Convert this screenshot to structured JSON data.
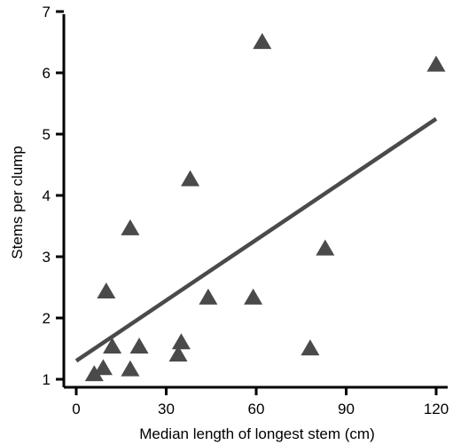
{
  "chart_data": {
    "type": "scatter",
    "title": "",
    "xlabel": "Median length of longest stem (cm)",
    "ylabel": "Stems per clump",
    "xlim": [
      -1,
      122
    ],
    "ylim": [
      0.9,
      7
    ],
    "x_ticks": [
      0,
      30,
      60,
      90,
      120
    ],
    "x_tick_labels": [
      "0",
      "30",
      "60",
      "90",
      "120"
    ],
    "y_ticks": [
      1,
      2,
      3,
      4,
      5,
      6,
      7
    ],
    "y_tick_labels": [
      "1",
      "2",
      "3",
      "4",
      "5",
      "6",
      "7"
    ],
    "grid": false,
    "legend": "none",
    "marker": "triangle",
    "marker_color": "#4a4a4a",
    "line_color": "#4a4a4a",
    "axis_color": "#000000",
    "series": [
      {
        "points": [
          {
            "x": 6,
            "y": 1.1
          },
          {
            "x": 9,
            "y": 1.2
          },
          {
            "x": 10,
            "y": 2.45
          },
          {
            "x": 12,
            "y": 1.55
          },
          {
            "x": 18,
            "y": 1.18
          },
          {
            "x": 18,
            "y": 3.48
          },
          {
            "x": 21,
            "y": 1.55
          },
          {
            "x": 34,
            "y": 1.42
          },
          {
            "x": 35,
            "y": 1.62
          },
          {
            "x": 38,
            "y": 4.28
          },
          {
            "x": 44,
            "y": 2.35
          },
          {
            "x": 59,
            "y": 2.35
          },
          {
            "x": 62,
            "y": 6.52
          },
          {
            "x": 78,
            "y": 1.52
          },
          {
            "x": 83,
            "y": 3.15
          },
          {
            "x": 120,
            "y": 6.15
          }
        ]
      }
    ],
    "trendline": {
      "x1": 0,
      "y1": 1.3,
      "x2": 120,
      "y2": 5.25
    }
  }
}
